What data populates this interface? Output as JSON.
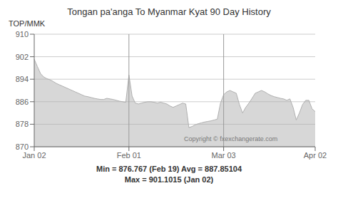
{
  "chart_data": {
    "type": "area",
    "title": "Tongan pa'anga To Myanmar Kyat 90 Day History",
    "y_label": "TOP/MMK",
    "annotation": "Copyright © fxexchangerate.com",
    "footer": [
      "Min = 876.767 (Feb 19) Avg = 887.85104",
      "Max = 901.1015 (Jan 02)"
    ],
    "color": "#b0b0b0",
    "grid": true,
    "ylim": [
      870,
      910
    ],
    "yticks": [
      870,
      878,
      886,
      894,
      902,
      910
    ],
    "vlines": [
      "Feb 01",
      "Mar 03"
    ],
    "categories": [
      "Jan 02",
      null,
      null,
      null,
      null,
      null,
      null,
      null,
      null,
      null,
      null,
      null,
      null,
      null,
      null,
      null,
      null,
      null,
      null,
      null,
      null,
      null,
      null,
      null,
      null,
      null,
      null,
      null,
      null,
      null,
      "Feb 01",
      null,
      null,
      null,
      null,
      null,
      null,
      null,
      null,
      null,
      null,
      null,
      null,
      null,
      null,
      null,
      null,
      null,
      null,
      null,
      null,
      null,
      null,
      null,
      null,
      null,
      null,
      null,
      null,
      null,
      "Mar 03",
      null,
      null,
      null,
      null,
      null,
      null,
      null,
      null,
      null,
      null,
      null,
      null,
      null,
      null,
      null,
      null,
      null,
      null,
      null,
      null,
      null,
      null,
      null,
      null,
      null,
      null,
      null,
      null,
      "Apr 02"
    ],
    "values": [
      901.1,
      898.5,
      896.0,
      894.8,
      894.2,
      893.8,
      893.2,
      892.5,
      892.0,
      891.5,
      891.0,
      890.5,
      890.0,
      889.5,
      889.0,
      888.5,
      888.0,
      887.8,
      887.5,
      887.2,
      887.0,
      886.8,
      886.8,
      887.2,
      887.0,
      886.8,
      886.5,
      886.2,
      886.0,
      885.8,
      895.5,
      888.0,
      885.5,
      885.2,
      885.5,
      885.8,
      886.0,
      886.0,
      885.8,
      885.5,
      885.8,
      885.5,
      885.2,
      884.5,
      884.0,
      884.5,
      885.0,
      885.5,
      885.2,
      876.8,
      877.2,
      877.8,
      878.2,
      878.5,
      878.8,
      879.0,
      879.2,
      879.5,
      879.8,
      885.5,
      888.5,
      889.5,
      890.0,
      889.5,
      889.0,
      885.0,
      882.0,
      884.0,
      885.5,
      887.2,
      889.0,
      889.5,
      890.0,
      889.5,
      888.8,
      888.2,
      887.8,
      887.5,
      887.2,
      887.0,
      886.5,
      887.0,
      884.0,
      879.5,
      882.0,
      885.0,
      886.5,
      886.5,
      883.5,
      882.5
    ]
  }
}
